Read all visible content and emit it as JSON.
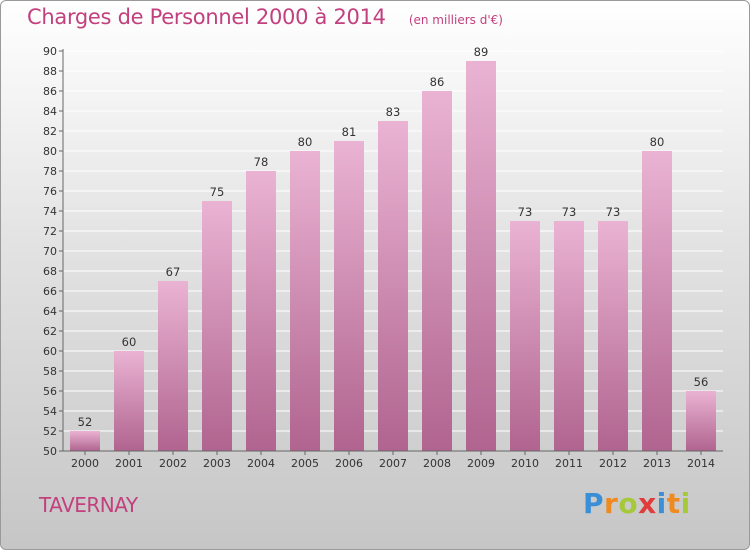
{
  "header": {
    "title": "Charges de Personnel 2000 à 2014",
    "subtitle": "(en milliers d'€)"
  },
  "footer": {
    "commune": "TAVERNAY",
    "brand": "Proxiti",
    "brand_letters": [
      {
        "ch": "P",
        "color": "#3a8fd6"
      },
      {
        "ch": "r",
        "color": "#ef8a1e"
      },
      {
        "ch": "o",
        "color": "#a6c93a"
      },
      {
        "ch": "x",
        "color": "#e13b3b"
      },
      {
        "ch": "i",
        "color": "#3a8fd6"
      },
      {
        "ch": "t",
        "color": "#ef8a1e"
      },
      {
        "ch": "i",
        "color": "#a6c93a"
      }
    ]
  },
  "colors": {
    "title": "#c2407e",
    "bar_light": "#eab3d3",
    "bar_dark": "#b0648f"
  },
  "chart_data": {
    "type": "bar",
    "title": "Charges de Personnel 2000 à 2014",
    "subtitle": "(en milliers d'€)",
    "categories": [
      "2000",
      "2001",
      "2002",
      "2003",
      "2004",
      "2005",
      "2006",
      "2007",
      "2008",
      "2009",
      "2010",
      "2011",
      "2012",
      "2013",
      "2014"
    ],
    "values": [
      52,
      60,
      67,
      75,
      78,
      80,
      81,
      83,
      86,
      89,
      73,
      73,
      73,
      80,
      56
    ],
    "ylim": [
      50,
      90
    ],
    "ytick_step": 2,
    "grid": true,
    "legend": "none"
  }
}
